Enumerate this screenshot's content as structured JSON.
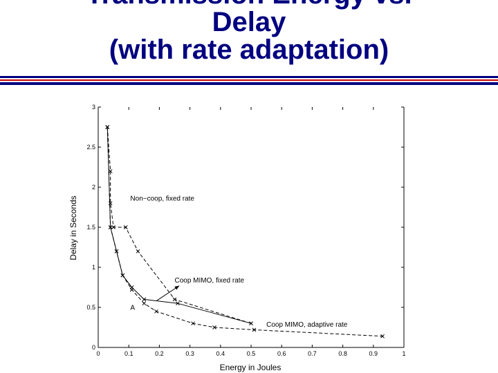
{
  "slide": {
    "title_lines": [
      "Transmission Energy vs.",
      "Delay",
      "(with rate adaptation)"
    ],
    "rule_colors": [
      "#000080",
      "#cc0000",
      "#000080"
    ]
  },
  "chart_data": {
    "type": "line",
    "xlabel": "Energy in Joules",
    "ylabel": "Delay in Seconds",
    "xlim": [
      0,
      1
    ],
    "ylim": [
      0,
      3
    ],
    "xticks": [
      "0",
      "0.1",
      "0.2",
      "0.3",
      "0.4",
      "0.5",
      "0.6",
      "0.7",
      "0.8",
      "0.9",
      "1"
    ],
    "yticks": [
      "0",
      "0.5",
      "1",
      "1.5",
      "2",
      "2.5",
      "3"
    ],
    "series": [
      {
        "name": "Non-coop, fixed rate",
        "style": "dashed",
        "x": [
          0.03,
          0.04,
          0.04,
          0.05,
          0.09,
          0.13,
          0.25,
          0.5
        ],
        "y": [
          2.75,
          2.2,
          1.8,
          1.5,
          1.5,
          1.2,
          0.6,
          0.3
        ]
      },
      {
        "name": "Coop MIMO, fixed rate",
        "style": "solid",
        "x": [
          0.03,
          0.04,
          0.06,
          0.08,
          0.11,
          0.15,
          0.26,
          0.5
        ],
        "y": [
          2.75,
          1.5,
          1.2,
          0.9,
          0.75,
          0.6,
          0.55,
          0.3
        ]
      },
      {
        "name": "Coop MIMO, adaptive rate",
        "style": "dashed",
        "x": [
          0.03,
          0.04,
          0.06,
          0.08,
          0.11,
          0.15,
          0.19,
          0.31,
          0.38,
          0.51,
          0.93
        ],
        "y": [
          2.75,
          1.5,
          1.2,
          0.9,
          0.72,
          0.55,
          0.45,
          0.3,
          0.25,
          0.22,
          0.14
        ]
      }
    ],
    "annotations": [
      {
        "text": "Non−coop, fixed rate",
        "x": 0.105,
        "y": 1.83
      },
      {
        "text": "Coop MIMO, fixed rate",
        "x": 0.25,
        "y": 0.81,
        "arrow_to": [
          0.265,
          0.77
        ],
        "arrow_from": [
          0.19,
          0.58
        ]
      },
      {
        "text": "A",
        "x": 0.105,
        "y": 0.47
      },
      {
        "text": "Coop MIMO, adaptive rate",
        "x": 0.55,
        "y": 0.26
      }
    ]
  }
}
